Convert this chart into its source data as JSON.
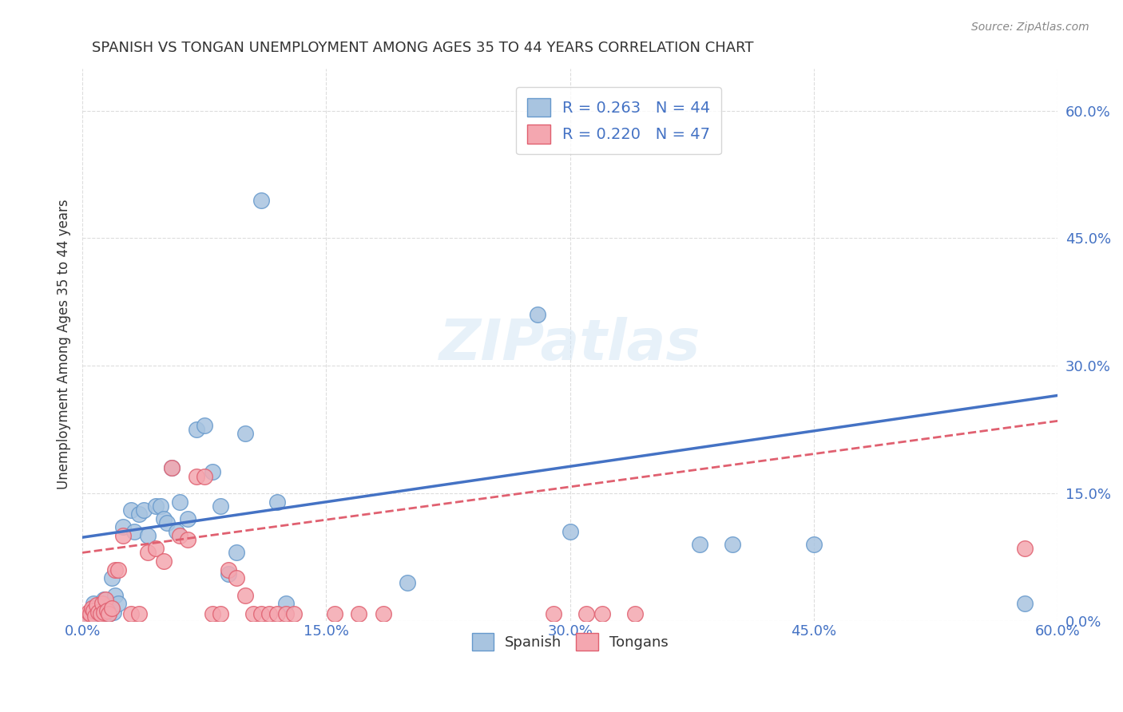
{
  "title": "SPANISH VS TONGAN UNEMPLOYMENT AMONG AGES 35 TO 44 YEARS CORRELATION CHART",
  "source": "Source: ZipAtlas.com",
  "xlabel": "",
  "ylabel": "Unemployment Among Ages 35 to 44 years",
  "xlim": [
    0.0,
    0.6
  ],
  "ylim": [
    0.0,
    0.65
  ],
  "xtick_labels": [
    "0.0%",
    "15.0%",
    "30.0%",
    "45.0%",
    "60.0%"
  ],
  "xtick_vals": [
    0.0,
    0.15,
    0.3,
    0.45,
    0.6
  ],
  "ytick_labels_left": [
    "",
    "",
    "",
    "",
    "",
    "",
    ""
  ],
  "ytick_labels_right": [
    "0.0%",
    "15.0%",
    "30.0%",
    "45.0%",
    "60.0%"
  ],
  "ytick_vals": [
    0.0,
    0.15,
    0.3,
    0.45,
    0.6
  ],
  "watermark": "ZIPatlas",
  "legend_spanish_R": "R = 0.263",
  "legend_spanish_N": "N = 44",
  "legend_tongan_R": "R = 0.220",
  "legend_tongan_N": "N = 47",
  "spanish_color": "#a8c4e0",
  "tongan_color": "#f4a7b0",
  "spanish_edge": "#6699cc",
  "tongan_edge": "#e06070",
  "line_spanish_color": "#4472c4",
  "line_tongan_color": "#e06070",
  "spanish_x": [
    0.005,
    0.007,
    0.008,
    0.01,
    0.012,
    0.013,
    0.015,
    0.016,
    0.017,
    0.018,
    0.019,
    0.02,
    0.022,
    0.025,
    0.03,
    0.032,
    0.035,
    0.038,
    0.04,
    0.045,
    0.048,
    0.05,
    0.052,
    0.055,
    0.058,
    0.06,
    0.065,
    0.07,
    0.075,
    0.08,
    0.085,
    0.09,
    0.095,
    0.1,
    0.11,
    0.12,
    0.125,
    0.2,
    0.28,
    0.3,
    0.38,
    0.4,
    0.45,
    0.58
  ],
  "spanish_y": [
    0.005,
    0.02,
    0.01,
    0.008,
    0.012,
    0.025,
    0.015,
    0.008,
    0.018,
    0.05,
    0.01,
    0.03,
    0.02,
    0.11,
    0.13,
    0.105,
    0.125,
    0.13,
    0.1,
    0.135,
    0.135,
    0.12,
    0.115,
    0.18,
    0.105,
    0.14,
    0.12,
    0.225,
    0.23,
    0.175,
    0.135,
    0.055,
    0.08,
    0.22,
    0.495,
    0.14,
    0.02,
    0.045,
    0.36,
    0.105,
    0.09,
    0.09,
    0.09,
    0.02
  ],
  "tongan_x": [
    0.002,
    0.004,
    0.005,
    0.006,
    0.007,
    0.008,
    0.009,
    0.01,
    0.011,
    0.012,
    0.013,
    0.014,
    0.015,
    0.016,
    0.018,
    0.02,
    0.022,
    0.025,
    0.03,
    0.035,
    0.04,
    0.045,
    0.05,
    0.055,
    0.06,
    0.065,
    0.07,
    0.075,
    0.08,
    0.085,
    0.09,
    0.095,
    0.1,
    0.105,
    0.11,
    0.115,
    0.12,
    0.125,
    0.13,
    0.155,
    0.17,
    0.185,
    0.29,
    0.31,
    0.32,
    0.34,
    0.58
  ],
  "tongan_y": [
    0.005,
    0.01,
    0.008,
    0.015,
    0.012,
    0.005,
    0.018,
    0.01,
    0.008,
    0.02,
    0.01,
    0.025,
    0.012,
    0.008,
    0.015,
    0.06,
    0.06,
    0.1,
    0.008,
    0.008,
    0.08,
    0.085,
    0.07,
    0.18,
    0.1,
    0.095,
    0.17,
    0.17,
    0.008,
    0.008,
    0.06,
    0.05,
    0.03,
    0.008,
    0.008,
    0.008,
    0.008,
    0.008,
    0.008,
    0.008,
    0.008,
    0.008,
    0.008,
    0.008,
    0.008,
    0.008,
    0.085
  ],
  "spanish_line_x": [
    0.0,
    0.6
  ],
  "spanish_line_y": [
    0.098,
    0.265
  ],
  "tongan_line_x": [
    0.0,
    0.6
  ],
  "tongan_line_y": [
    0.08,
    0.235
  ],
  "background_color": "#ffffff",
  "grid_color": "#dddddd",
  "title_color": "#333333",
  "axis_label_color": "#333333",
  "right_tick_color": "#4472c4",
  "bottom_tick_color": "#4472c4"
}
